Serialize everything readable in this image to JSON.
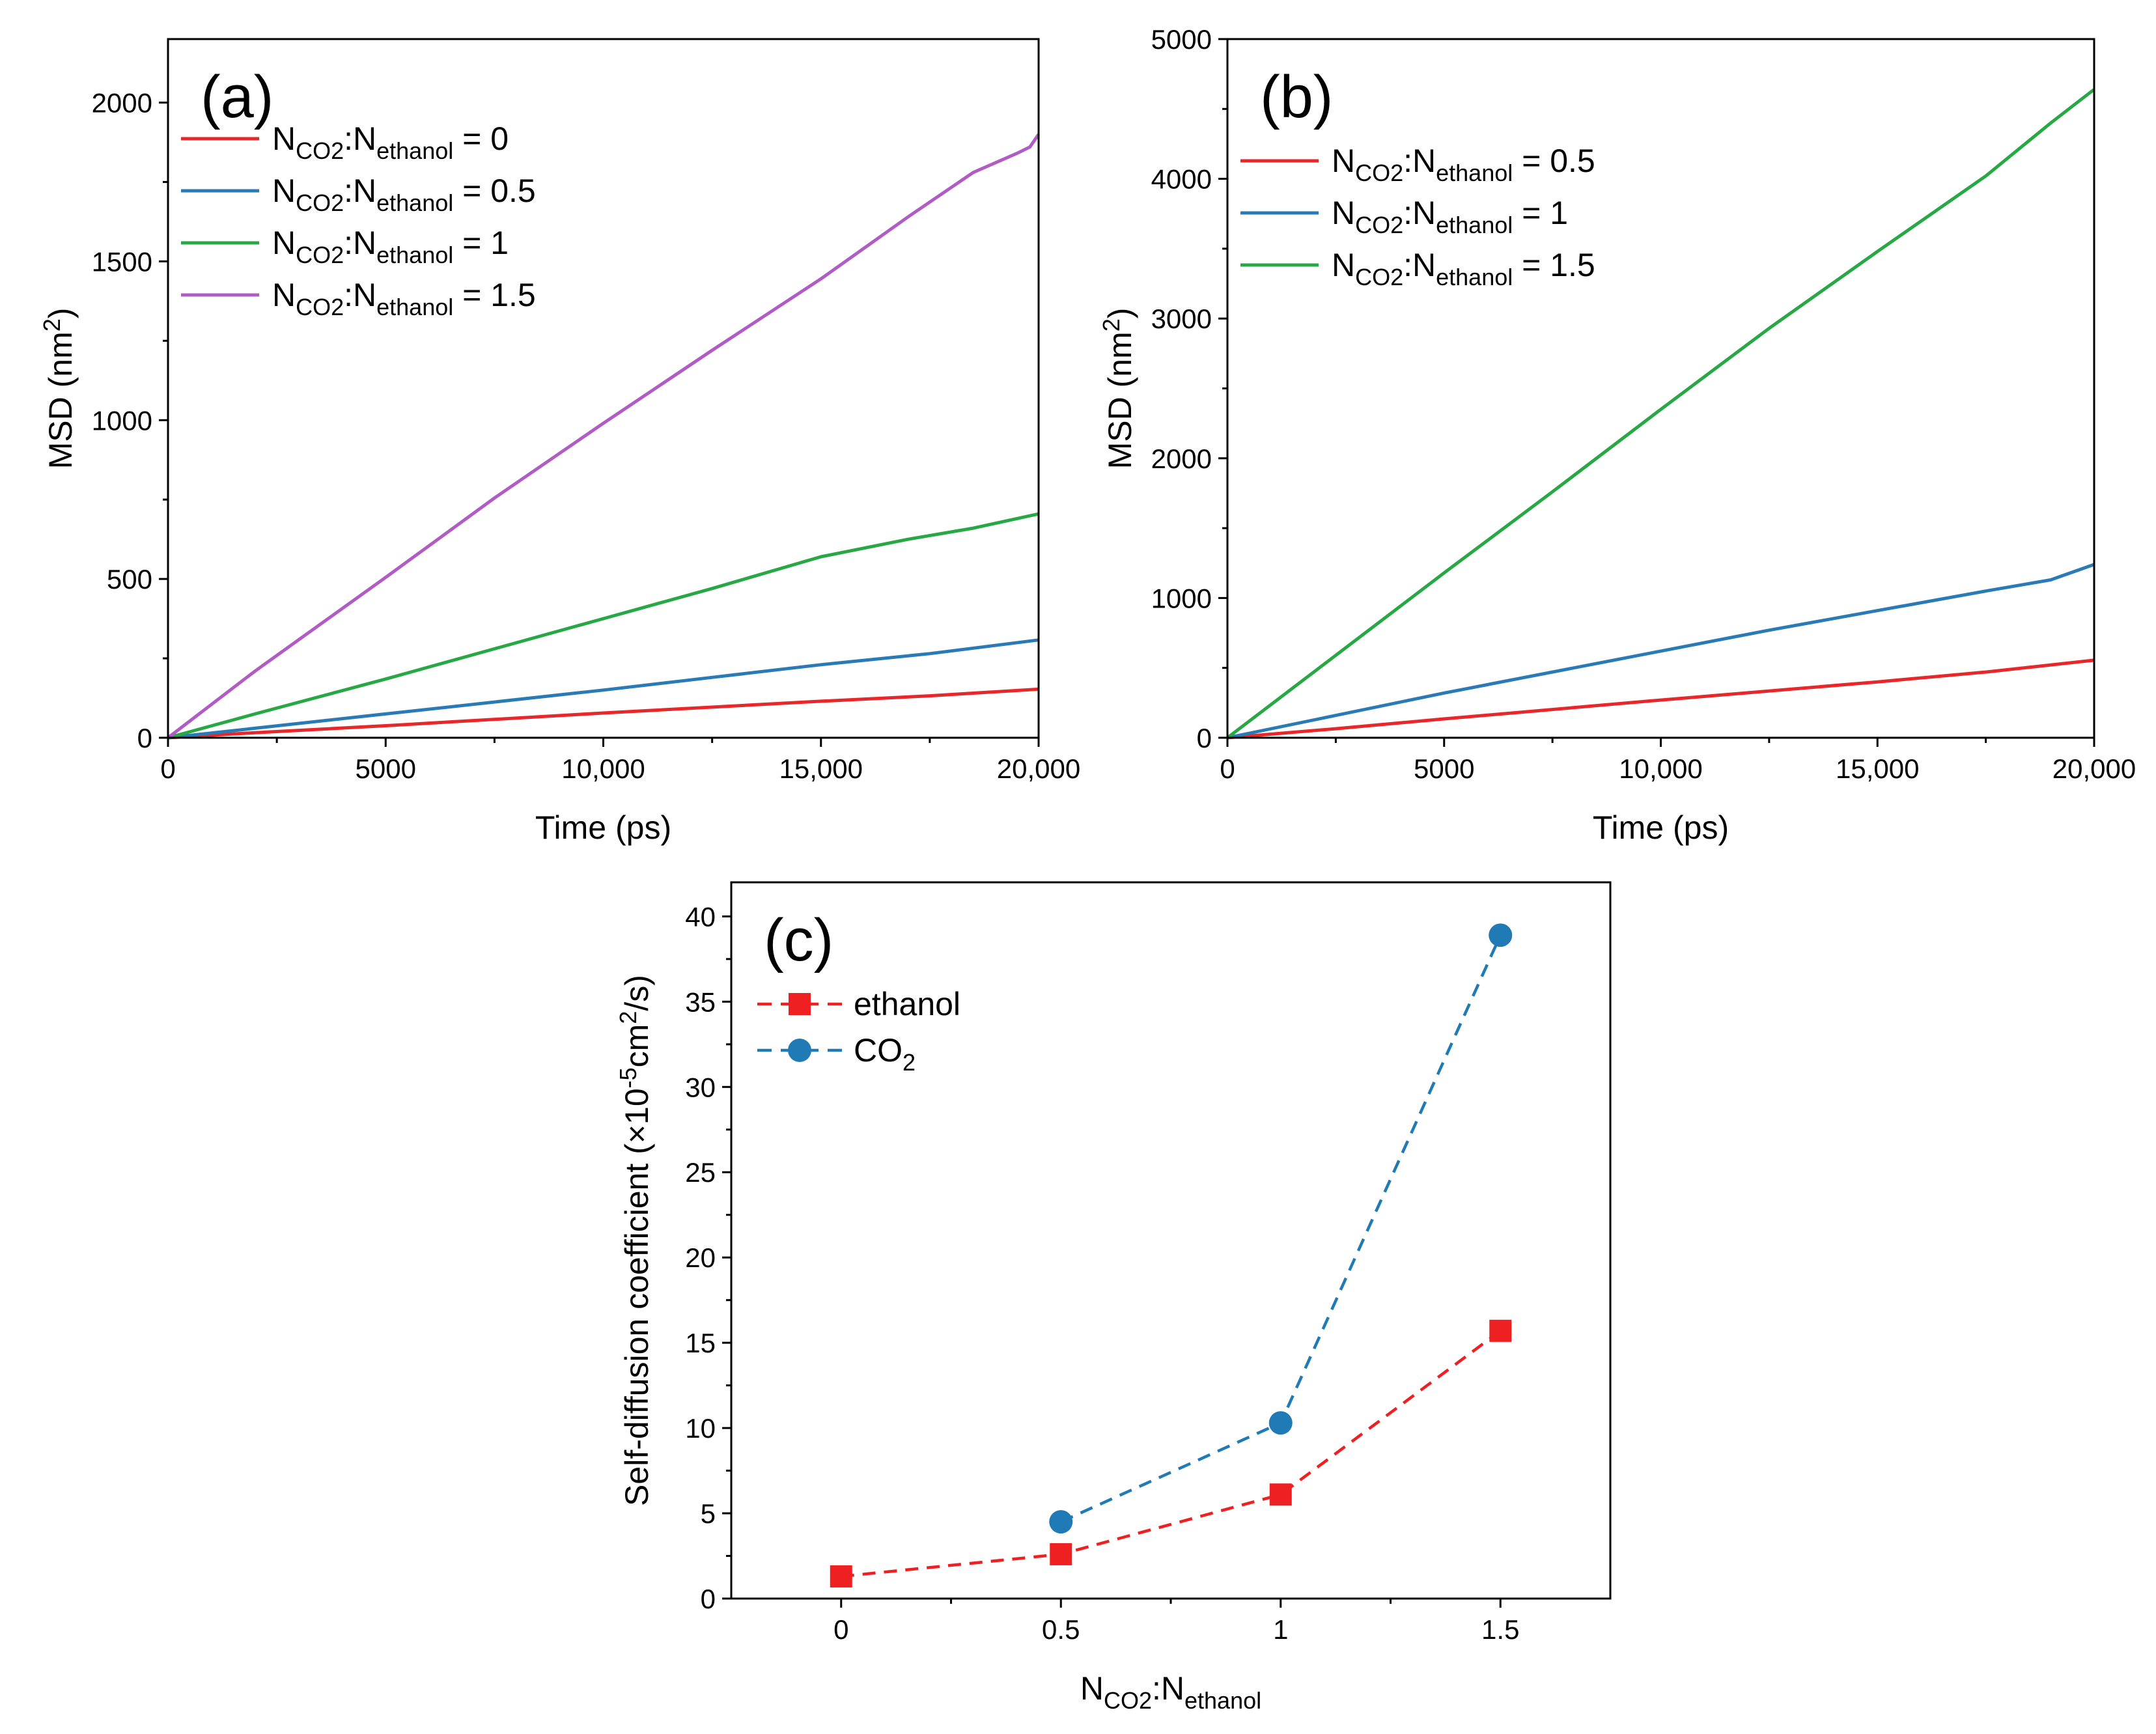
{
  "chart_data": [
    {
      "type": "line",
      "panel_label": "(a)",
      "xlabel": "Time (ps)",
      "ylabel": {
        "main": "MSD (nm",
        "sup": "2",
        "end": ")"
      },
      "xlim": [
        0,
        20000
      ],
      "ylim": [
        0,
        2200
      ],
      "xticks": [
        0,
        5000,
        10000,
        15000,
        20000
      ],
      "xtick_labels": [
        "0",
        "5000",
        "10,000",
        "15,000",
        "20,000"
      ],
      "yticks": [
        0,
        500,
        1000,
        1500,
        2000
      ],
      "ytick_labels": [
        "0",
        "500",
        "1000",
        "1500",
        "2000"
      ],
      "legend_position": "top-left",
      "series": [
        {
          "name": "NCO2:Nethanol = 0",
          "label": {
            "a": "N",
            "a_sub": "CO2",
            "mid": ":N",
            "b_sub": "ethanol",
            "tail": " = 0"
          },
          "color": "#e8272a",
          "points": [
            [
              0,
              0
            ],
            [
              2000,
              16
            ],
            [
              5000,
              38
            ],
            [
              10000,
              78
            ],
            [
              15000,
              115
            ],
            [
              17500,
              132
            ],
            [
              20000,
              153
            ]
          ]
        },
        {
          "name": "NCO2:Nethanol = 0.5",
          "label": {
            "a": "N",
            "a_sub": "CO2",
            "mid": ":N",
            "b_sub": "ethanol",
            "tail": " = 0.5"
          },
          "color": "#2a7bb5",
          "points": [
            [
              0,
              0
            ],
            [
              2000,
              30
            ],
            [
              5000,
              75
            ],
            [
              10000,
              150
            ],
            [
              12500,
              190
            ],
            [
              15000,
              230
            ],
            [
              17500,
              265
            ],
            [
              20000,
              308
            ]
          ]
        },
        {
          "name": "NCO2:Nethanol = 1",
          "label": {
            "a": "N",
            "a_sub": "CO2",
            "mid": ":N",
            "b_sub": "ethanol",
            "tail": " = 1"
          },
          "color": "#27a844",
          "points": [
            [
              0,
              0
            ],
            [
              2000,
              75
            ],
            [
              5000,
              185
            ],
            [
              7500,
              280
            ],
            [
              10000,
              375
            ],
            [
              12500,
              470
            ],
            [
              15000,
              570
            ],
            [
              17000,
              625
            ],
            [
              18500,
              660
            ],
            [
              20000,
              705
            ]
          ]
        },
        {
          "name": "NCO2:Nethanol = 1.5",
          "label": {
            "a": "N",
            "a_sub": "CO2",
            "mid": ":N",
            "b_sub": "ethanol",
            "tail": " = 1.5"
          },
          "color": "#b05cc4",
          "points": [
            [
              0,
              0
            ],
            [
              2000,
              210
            ],
            [
              5000,
              505
            ],
            [
              7500,
              755
            ],
            [
              10000,
              990
            ],
            [
              12500,
              1220
            ],
            [
              15000,
              1445
            ],
            [
              17000,
              1640
            ],
            [
              18500,
              1780
            ],
            [
              19500,
              1840
            ],
            [
              19800,
              1860
            ],
            [
              20000,
              1900
            ]
          ]
        }
      ]
    },
    {
      "type": "line",
      "panel_label": "(b)",
      "xlabel": "Time (ps)",
      "ylabel": {
        "main": "MSD (nm",
        "sup": "2",
        "end": ")"
      },
      "xlim": [
        0,
        20000
      ],
      "ylim": [
        0,
        5000
      ],
      "xticks": [
        0,
        5000,
        10000,
        15000,
        20000
      ],
      "xtick_labels": [
        "0",
        "5000",
        "10,000",
        "15,000",
        "20,000"
      ],
      "yticks": [
        0,
        1000,
        2000,
        3000,
        4000,
        5000
      ],
      "ytick_labels": [
        "0",
        "1000",
        "2000",
        "3000",
        "4000",
        "5000"
      ],
      "legend_position": "top-left",
      "series": [
        {
          "name": "NCO2:Nethanol = 0.5",
          "label": {
            "a": "N",
            "a_sub": "CO2",
            "mid": ":N",
            "b_sub": "ethanol",
            "tail": " = 0.5"
          },
          "color": "#e8272a",
          "points": [
            [
              0,
              0
            ],
            [
              2500,
              65
            ],
            [
              5000,
              135
            ],
            [
              10000,
              270
            ],
            [
              15000,
              400
            ],
            [
              17500,
              470
            ],
            [
              20000,
              555
            ]
          ]
        },
        {
          "name": "NCO2:Nethanol = 1",
          "label": {
            "a": "N",
            "a_sub": "CO2",
            "mid": ":N",
            "b_sub": "ethanol",
            "tail": " = 1"
          },
          "color": "#2a7bb5",
          "points": [
            [
              0,
              0
            ],
            [
              2500,
              160
            ],
            [
              5000,
              320
            ],
            [
              10000,
              620
            ],
            [
              12500,
              770
            ],
            [
              15000,
              910
            ],
            [
              17500,
              1050
            ],
            [
              19000,
              1130
            ],
            [
              20000,
              1240
            ]
          ]
        },
        {
          "name": "NCO2:Nethanol = 1.5",
          "label": {
            "a": "N",
            "a_sub": "CO2",
            "mid": ":N",
            "b_sub": "ethanol",
            "tail": " = 1.5"
          },
          "color": "#27a844",
          "points": [
            [
              0,
              0
            ],
            [
              2500,
              590
            ],
            [
              5000,
              1180
            ],
            [
              7500,
              1760
            ],
            [
              10000,
              2350
            ],
            [
              12500,
              2930
            ],
            [
              15000,
              3480
            ],
            [
              17500,
              4020
            ],
            [
              19000,
              4400
            ],
            [
              20000,
              4640
            ]
          ]
        }
      ]
    },
    {
      "type": "scatter",
      "panel_label": "(c)",
      "xlabel": {
        "a": "N",
        "a_sub": "CO2",
        "mid": ":N",
        "b_sub": "ethanol"
      },
      "ylabel": {
        "main": "Self-diffusion coefficient (×10",
        "sup1": "-5",
        "mid": "cm",
        "sup2": "2",
        "end": "/s)"
      },
      "xlim": [
        -0.25,
        1.75
      ],
      "ylim": [
        0,
        42
      ],
      "xticks": [
        0,
        0.5,
        1,
        1.5
      ],
      "xtick_labels": [
        "0",
        "0.5",
        "1",
        "1.5"
      ],
      "yticks": [
        0,
        5,
        10,
        15,
        20,
        25,
        30,
        35,
        40
      ],
      "ytick_labels": [
        "0",
        "5",
        "10",
        "15",
        "20",
        "25",
        "30",
        "35",
        "40"
      ],
      "legend_position": "top-left",
      "series": [
        {
          "name": "ethanol",
          "label": {
            "main": "ethanol",
            "sub": ""
          },
          "marker": "square",
          "color": "#ee2022",
          "line": "dashed",
          "x": [
            0,
            0.5,
            1,
            1.5
          ],
          "values": [
            1.3,
            2.6,
            6.1,
            15.7
          ]
        },
        {
          "name": "CO2",
          "label": {
            "main": "CO",
            "sub": "2"
          },
          "marker": "circle",
          "color": "#1f7ab5",
          "line": "dashed",
          "x": [
            0.5,
            1,
            1.5
          ],
          "values": [
            4.5,
            10.3,
            38.9
          ]
        }
      ]
    }
  ]
}
